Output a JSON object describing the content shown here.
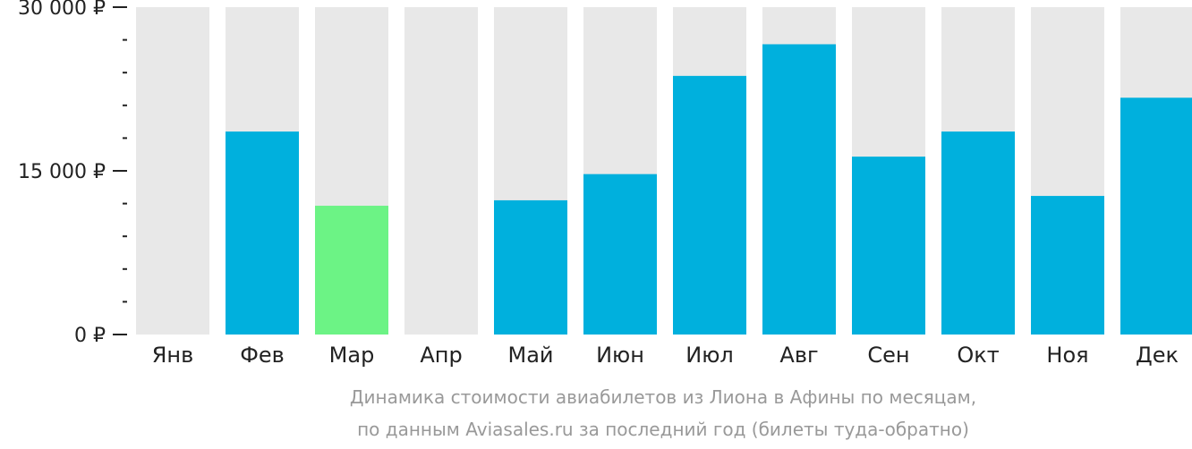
{
  "chart_data": {
    "type": "bar",
    "categories": [
      "Янв",
      "Фев",
      "Мар",
      "Апр",
      "Май",
      "Июн",
      "Июл",
      "Авг",
      "Сен",
      "Окт",
      "Ноя",
      "Дек"
    ],
    "values": [
      null,
      18600,
      11800,
      null,
      12300,
      14700,
      23700,
      26600,
      16300,
      18600,
      12700,
      21700
    ],
    "ylim": [
      0,
      30000
    ],
    "y_ticks": [
      {
        "value": 0,
        "label": "0 ₽"
      },
      {
        "value": 15000,
        "label": "15 000 ₽"
      },
      {
        "value": 30000,
        "label": "30 000 ₽"
      }
    ],
    "y_minor_step": 3000,
    "highlight_index": 2,
    "grid": false,
    "caption": [
      "Динамика стоимости авиабилетов из Лиона в Афины по месяцам,",
      "по данным Aviasales.ru за последний год (билеты туда-обратно)"
    ]
  },
  "colors": {
    "bar": "#00b0dd",
    "highlight": "#6cf385",
    "track": "#e8e8e8",
    "axis": "#222222",
    "caption": "#999999"
  }
}
